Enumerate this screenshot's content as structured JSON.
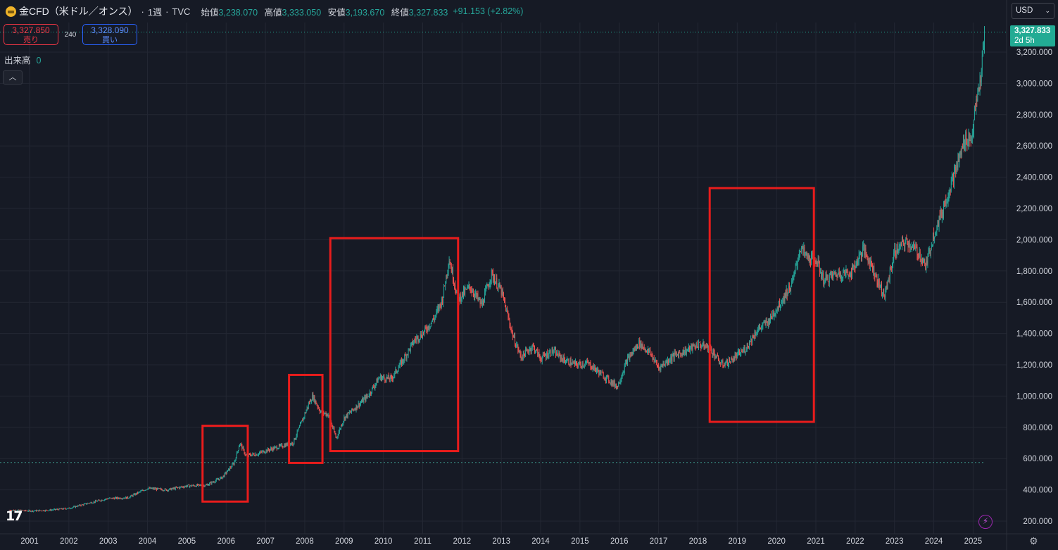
{
  "header": {
    "title": "金CFD（米ドル／オンス）",
    "sep1": "·",
    "interval": "1週",
    "sep2": "·",
    "source": "TVC",
    "open_label": "始値",
    "open": "3,238.070",
    "high_label": "高値",
    "high": "3,333.050",
    "low_label": "安値",
    "low": "3,193.670",
    "close_label": "終値",
    "close": "3,327.833",
    "change": "+91.153 (+2.82%)"
  },
  "trade": {
    "sell_price": "3,327.850",
    "sell_label": "売り",
    "spread": "240",
    "buy_price": "3,328.090",
    "buy_label": "買い"
  },
  "volume": {
    "label": "出来高",
    "value": "0"
  },
  "currency": "USD",
  "price_tag": {
    "price": "3,327.833",
    "countdown": "2d 5h"
  },
  "colors": {
    "background": "#161a25",
    "grid": "#232733",
    "up": "#26a69a",
    "down": "#ef5350",
    "highlight_box": "#e81c1c",
    "last_price_line": "#22ab94"
  },
  "icons": [
    "gold-symbol-icon",
    "chevron-down-icon",
    "chevron-up-icon",
    "tradingview-logo-icon",
    "lightning-icon",
    "gear-icon"
  ],
  "chart_data": {
    "type": "line",
    "title": "金CFD（米ドル／オンス）",
    "interval": "1週",
    "xlabel": "",
    "ylabel": "",
    "y_axis_side": "right",
    "ylim": [
      150,
      3500
    ],
    "y_ticks": [
      "200.000",
      "400.000",
      "600.000",
      "800.000",
      "1,000.000",
      "1,200.000",
      "1,400.000",
      "1,600.000",
      "1,800.000",
      "2,000.000",
      "2,200.000",
      "2,400.000",
      "2,600.000",
      "2,800.000",
      "3,000.000",
      "3,200.000"
    ],
    "y_tick_values": [
      200,
      400,
      600,
      800,
      1000,
      1200,
      1400,
      1600,
      1800,
      2000,
      2200,
      2400,
      2600,
      2800,
      3000,
      3200
    ],
    "x_ticks": [
      "2001",
      "2002",
      "2003",
      "2004",
      "2005",
      "2006",
      "2007",
      "2008",
      "2009",
      "2010",
      "2011",
      "2012",
      "2013",
      "2014",
      "2015",
      "2016",
      "2017",
      "2018",
      "2019",
      "2020",
      "2021",
      "2022",
      "2023",
      "2024",
      "2025"
    ],
    "grid": true,
    "series": [
      {
        "x": [
          2000.5,
          2001.0,
          2001.5,
          2002.0,
          2002.5,
          2003.0,
          2003.5,
          2004.0,
          2004.5,
          2005.0,
          2005.5,
          2005.9,
          2006.2,
          2006.35,
          2006.5,
          2006.8,
          2007.0,
          2007.4,
          2007.7,
          2007.9,
          2008.1,
          2008.2,
          2008.4,
          2008.6,
          2008.8,
          2009.0,
          2009.3,
          2009.6,
          2009.9,
          2010.2,
          2010.5,
          2010.8,
          2011.0,
          2011.3,
          2011.5,
          2011.67,
          2011.9,
          2012.2,
          2012.5,
          2012.75,
          2013.0,
          2013.3,
          2013.5,
          2013.8,
          2014.0,
          2014.3,
          2014.6,
          2014.9,
          2015.2,
          2015.5,
          2015.95,
          2016.2,
          2016.5,
          2016.8,
          2017.0,
          2017.4,
          2017.7,
          2018.0,
          2018.3,
          2018.6,
          2018.8,
          2019.2,
          2019.5,
          2019.8,
          2020.0,
          2020.2,
          2020.4,
          2020.6,
          2020.8,
          2021.0,
          2021.2,
          2021.5,
          2021.9,
          2022.2,
          2022.4,
          2022.6,
          2022.75,
          2023.0,
          2023.3,
          2023.6,
          2023.8,
          2024.0,
          2024.2,
          2024.4,
          2024.6,
          2024.8,
          2024.95,
          2025.1,
          2025.2,
          2025.3
        ],
        "values": [
          270,
          265,
          270,
          282,
          315,
          345,
          350,
          410,
          400,
          425,
          430,
          480,
          570,
          700,
          620,
          630,
          650,
          680,
          700,
          820,
          950,
          1000,
          900,
          880,
          730,
          860,
          930,
          1000,
          1120,
          1110,
          1230,
          1360,
          1400,
          1500,
          1620,
          1880,
          1620,
          1700,
          1580,
          1780,
          1670,
          1380,
          1250,
          1320,
          1240,
          1290,
          1230,
          1200,
          1210,
          1150,
          1060,
          1230,
          1340,
          1270,
          1180,
          1260,
          1290,
          1330,
          1310,
          1200,
          1220,
          1300,
          1420,
          1480,
          1560,
          1640,
          1720,
          1950,
          1880,
          1880,
          1740,
          1780,
          1790,
          1940,
          1850,
          1720,
          1640,
          1920,
          1990,
          1920,
          1830,
          2040,
          2170,
          2330,
          2480,
          2650,
          2640,
          2900,
          3050,
          3327.833
        ]
      }
    ],
    "last_price": 3327.833,
    "reference_price": 575,
    "highlight_boxes": [
      {
        "x_from": 2005.4,
        "x_to": 2006.55,
        "y_from": 325,
        "y_to": 810
      },
      {
        "x_from": 2007.6,
        "x_to": 2008.45,
        "y_from": 572,
        "y_to": 1135
      },
      {
        "x_from": 2008.65,
        "x_to": 2011.9,
        "y_from": 648,
        "y_to": 2010
      },
      {
        "x_from": 2018.3,
        "x_to": 2020.95,
        "y_from": 835,
        "y_to": 2330
      }
    ]
  }
}
